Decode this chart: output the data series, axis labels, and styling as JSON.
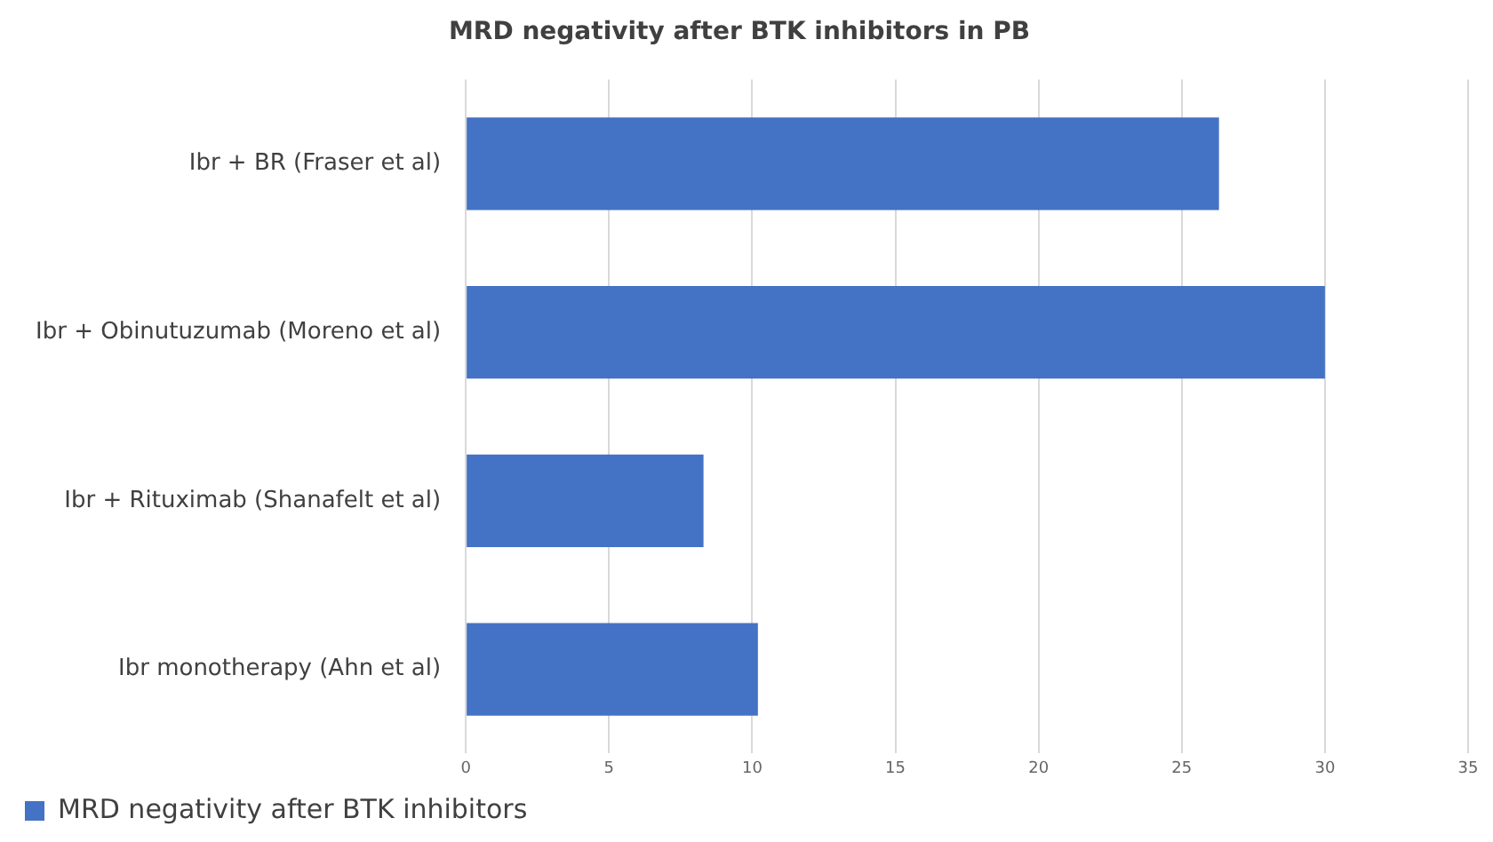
{
  "chart_data": {
    "type": "bar",
    "orientation": "horizontal",
    "title": "MRD negativity after BTK inhibitors in PB",
    "categories": [
      "Ibr + BR (Fraser et al)",
      "Ibr + Obinutuzumab (Moreno et al)",
      "Ibr + Rituximab (Shanafelt et al)",
      "Ibr monotherapy (Ahn et al)"
    ],
    "series": [
      {
        "name": "MRD negativity after BTK inhibitors",
        "color": "#4472c4",
        "values": [
          26.3,
          30,
          8.3,
          10.2
        ]
      }
    ],
    "xlim": [
      0,
      35
    ],
    "xticks": [
      0,
      5,
      10,
      15,
      20,
      25,
      30,
      35
    ],
    "grid": "x",
    "legend": "bottom"
  }
}
